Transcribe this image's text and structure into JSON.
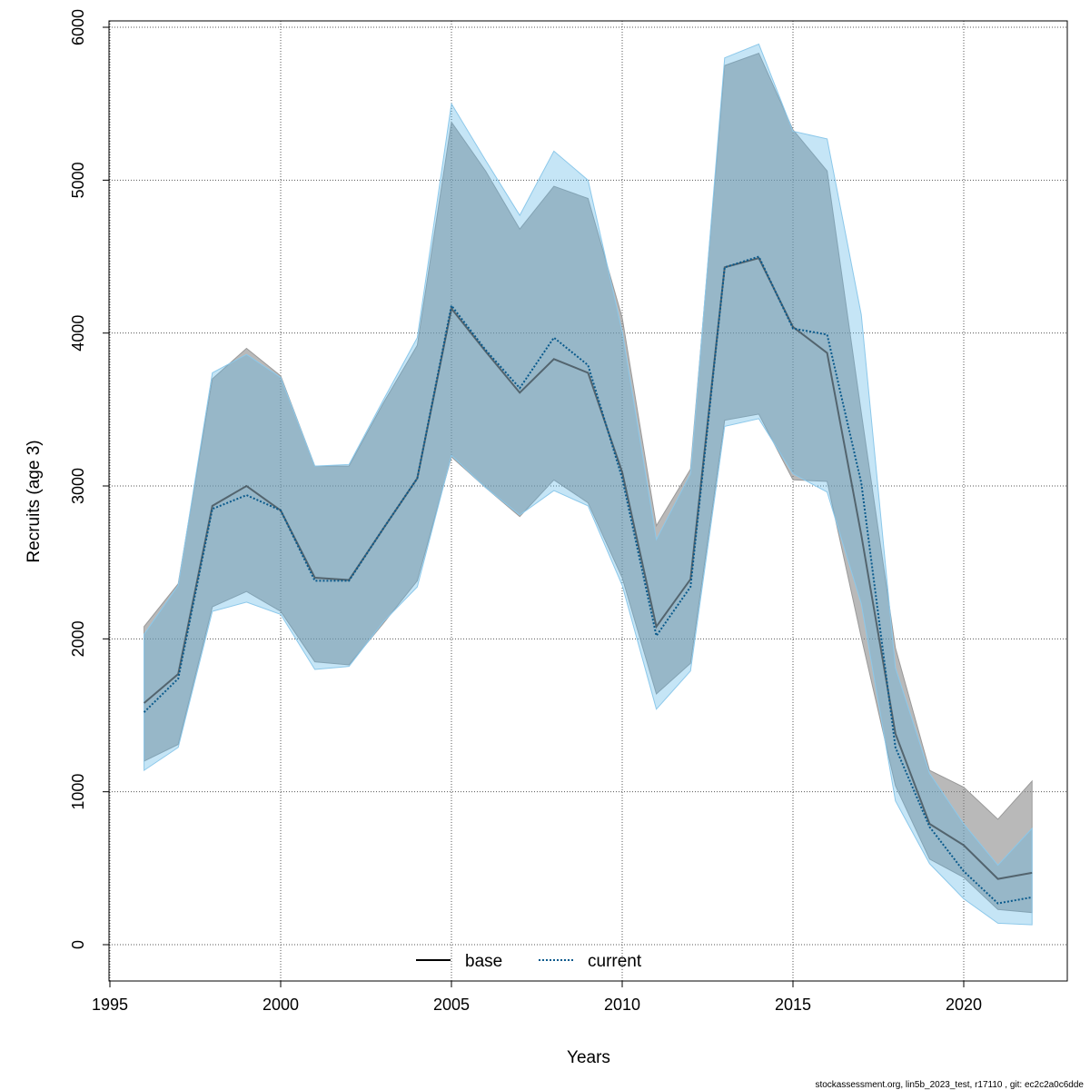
{
  "chart_data": {
    "type": "line",
    "xlabel": "Years",
    "ylabel": "Recruits (age 3)",
    "xlim": [
      1995,
      2023
    ],
    "ylim": [
      -200,
      6100
    ],
    "x_ticks": [
      1995,
      2000,
      2005,
      2010,
      2015,
      2020
    ],
    "y_ticks": [
      0,
      1000,
      2000,
      3000,
      4000,
      5000,
      6000
    ],
    "grid": true,
    "legend_position": "bottom-center",
    "x": [
      1996,
      1997,
      1998,
      1999,
      2000,
      2001,
      2002,
      2003,
      2004,
      2005,
      2006,
      2007,
      2008,
      2009,
      2010,
      2011,
      2012,
      2013,
      2014,
      2015,
      2016,
      2017,
      2018,
      2019,
      2020,
      2021,
      2022
    ],
    "series": [
      {
        "name": "base",
        "color": "#000000",
        "band_color": "#808080",
        "line_style": "solid",
        "values": [
          1580,
          1770,
          2870,
          3000,
          2840,
          2400,
          2385,
          2720,
          3050,
          4160,
          3880,
          3610,
          3830,
          3740,
          3090,
          2080,
          2390,
          4430,
          4490,
          4040,
          3870,
          2680,
          1380,
          790,
          650,
          430,
          470
        ],
        "lower": [
          1200,
          1310,
          2210,
          2310,
          2180,
          1850,
          1830,
          2100,
          2380,
          3190,
          2990,
          2800,
          3040,
          2890,
          2400,
          1640,
          1840,
          3430,
          3470,
          3040,
          3030,
          2010,
          1040,
          560,
          440,
          230,
          210
        ],
        "upper": [
          2080,
          2360,
          3700,
          3900,
          3720,
          3130,
          3130,
          3540,
          3920,
          5380,
          5060,
          4680,
          4960,
          4880,
          4100,
          2740,
          3110,
          5750,
          5830,
          5330,
          5060,
          3480,
          1940,
          1140,
          1030,
          820,
          1070
        ]
      },
      {
        "name": "current",
        "color": "#0a5a8c",
        "band_color": "#5ab4e6",
        "line_style": "dotted",
        "values": [
          1520,
          1740,
          2850,
          2940,
          2840,
          2380,
          2380,
          2720,
          3050,
          4180,
          3890,
          3640,
          3970,
          3790,
          3050,
          2020,
          2340,
          4430,
          4500,
          4030,
          3990,
          3020,
          1290,
          770,
          480,
          270,
          310
        ],
        "lower": [
          1140,
          1290,
          2180,
          2240,
          2160,
          1800,
          1820,
          2110,
          2340,
          3200,
          2990,
          2810,
          2970,
          2870,
          2350,
          1540,
          1790,
          3390,
          3440,
          3080,
          2960,
          2230,
          940,
          530,
          300,
          140,
          130
        ],
        "upper": [
          2030,
          2350,
          3740,
          3860,
          3710,
          3130,
          3140,
          3560,
          3970,
          5500,
          5130,
          4770,
          5190,
          5000,
          4010,
          2650,
          3080,
          5800,
          5890,
          5320,
          5270,
          4120,
          1810,
          1120,
          790,
          520,
          760
        ]
      }
    ]
  },
  "footer": {
    "text": "stockassessment.org, lin5b_2023_test, r17110 , git: ec2c2a0c6dde"
  }
}
